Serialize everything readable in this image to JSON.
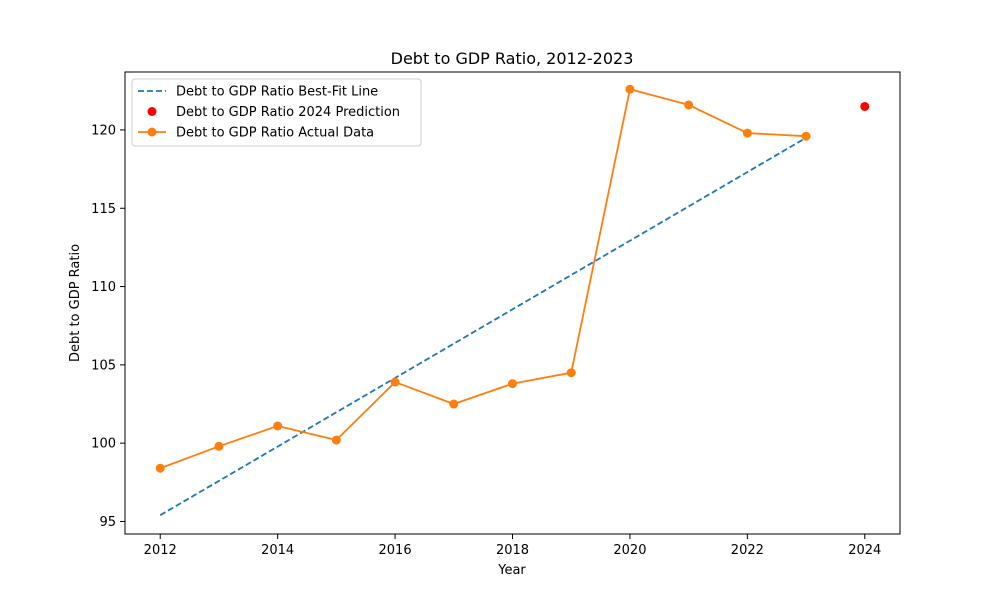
{
  "chart_data": {
    "type": "line",
    "title": "Debt to GDP Ratio, 2012-2023",
    "xlabel": "Year",
    "ylabel": "Debt to GDP Ratio",
    "xlim": [
      2011.4,
      2024.6
    ],
    "ylim": [
      94.2,
      123.7
    ],
    "x_ticks": [
      2012,
      2014,
      2016,
      2018,
      2020,
      2022,
      2024
    ],
    "y_ticks": [
      95,
      100,
      105,
      110,
      115,
      120
    ],
    "grid": false,
    "legend_position": "upper-left",
    "series": [
      {
        "name": "Debt to GDP Ratio Best-Fit Line",
        "kind": "dashed-line",
        "color": "#1f77b4",
        "x": [
          2012,
          2023
        ],
        "y": [
          95.4,
          119.5
        ]
      },
      {
        "name": "Debt to GDP Ratio 2024 Prediction",
        "kind": "scatter",
        "color": "#ff0000",
        "x": [
          2024
        ],
        "y": [
          121.5
        ]
      },
      {
        "name": "Debt to GDP Ratio Actual Data",
        "kind": "line-markers",
        "color": "#ff7f0e",
        "x": [
          2012,
          2013,
          2014,
          2015,
          2016,
          2017,
          2018,
          2019,
          2020,
          2021,
          2022,
          2023
        ],
        "y": [
          98.4,
          99.8,
          101.1,
          100.2,
          103.9,
          102.5,
          103.8,
          104.5,
          122.6,
          121.6,
          119.8,
          119.6
        ]
      }
    ]
  }
}
